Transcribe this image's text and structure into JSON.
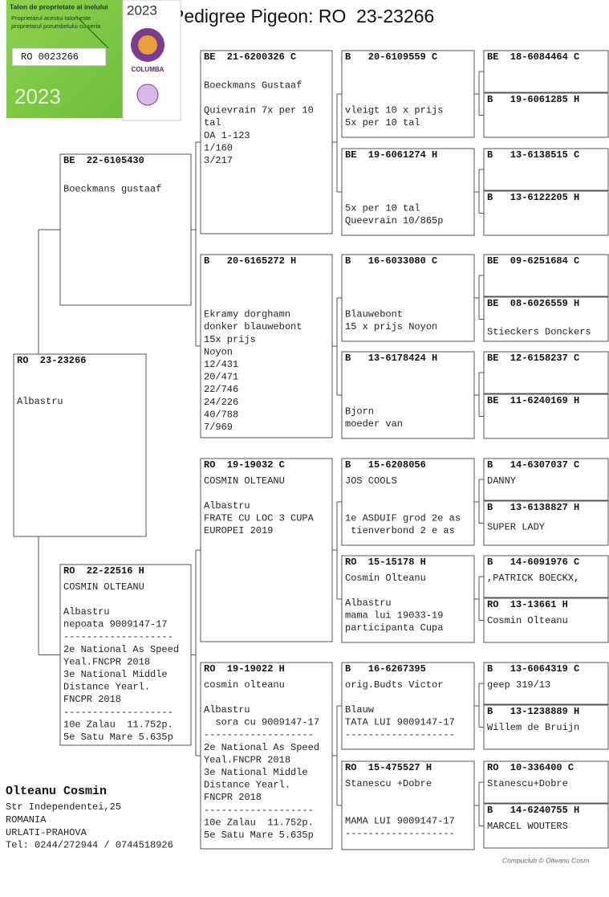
{
  "title": "Pedigree Pigeon: RO  23-23266",
  "sticker": {
    "heading": "Talon de proprietate al inelului",
    "line1": "Proprietarul acestui talon este",
    "line2": "proprietarul porumbelului cu seria",
    "ring": "RO 0023266",
    "year": "2023",
    "badge_year": "2023",
    "badge_name": "COLUMBA"
  },
  "boxes": [
    {
      "lines": [
        "RO  23-23266",
        "Albastru"
      ]
    },
    {
      "lines": [
        "BE  22-6105430",
        "Boeckmans gustaaf"
      ]
    },
    {
      "lines": [
        "RO  22-22516 H",
        "COSMIN OLTEANU",
        "Albastru",
        "nepoata 9009147-17",
        "-------------------",
        "2e National As Speed",
        "Yeal.FNCPR 2018",
        "3e National Middle",
        "Distance Yearl.",
        "FNCPR 2018",
        "-------------------",
        "10e Zalau  11.752p.",
        "5e Satu Mare 5.635p"
      ]
    },
    {
      "lines": [
        "BE  21-6200326 C",
        "Boeckmans Gustaaf",
        "Quievrain 7x per 10",
        "tal",
        "OA 1-123",
        "1/160",
        "3/217"
      ]
    },
    {
      "lines": [
        "B   20-6165272 H",
        "Ekramy dorghamn",
        "donker blauwebont",
        "15x prijs",
        "Noyon",
        "12/431",
        "20/471",
        "22/746",
        "24/226",
        "40/788",
        "7/969"
      ]
    },
    {
      "lines": [
        "RO  19-19032 C",
        "COSMIN OLTEANU",
        "Albastru",
        "FRATE CU LOC 3 CUPA",
        "EUROPEI 2019"
      ]
    },
    {
      "lines": [
        "RO  19-19022 H",
        "cosmin olteanu",
        "Albastru",
        "  sora cu 9009147-17",
        "-------------------",
        "2e National As Speed",
        "Yeal.FNCPR 2018",
        "3e National Middle",
        "Distance Yearl.",
        "FNCPR 2018",
        "-------------------",
        "10e Zalau  11.752p.",
        "5e Satu Mare 5.635p"
      ]
    },
    {
      "lines": [
        "B   20-6109559 C",
        "vleigt 10 x prijs",
        "5x per 10 tal"
      ]
    },
    {
      "lines": [
        "BE  19-6061274 H",
        "5x per 10 tal",
        "Queevrain 10/865p"
      ]
    },
    {
      "lines": [
        "B   16-6033080 C",
        "Blauwebont",
        "15 x prijs Noyon"
      ]
    },
    {
      "lines": [
        "B   13-6178424 H",
        "Bjorn",
        "moeder van"
      ]
    },
    {
      "lines": [
        "B   15-6208056",
        "JOS COOLS",
        "1e ASDUIF grod 2e as",
        " tienverbond 2 e as"
      ]
    },
    {
      "lines": [
        "RO  15-15178 H",
        "Cosmin Olteanu",
        "Albastru",
        "mama lui 19033-19",
        "participanta Cupa"
      ]
    },
    {
      "lines": [
        "B   16-6267395",
        "orig.Budts Victor",
        "Blauw",
        "TATA LUI 9009147-17",
        "-------------------"
      ]
    },
    {
      "lines": [
        "RO  15-475527 H",
        "Stanescu +Dobre",
        "MAMA LUI 9009147-17",
        "-------------------"
      ]
    },
    {
      "lines": [
        "BE  18-6084464 C"
      ]
    },
    {
      "lines": [
        "B   19-6061285 H"
      ]
    },
    {
      "lines": [
        "B   13-6138515 C"
      ]
    },
    {
      "lines": [
        "B   13-6122205 H"
      ]
    },
    {
      "lines": [
        "BE  09-6251684 C"
      ]
    },
    {
      "lines": [
        "BE  08-6026559 H",
        "Stieckers Donckers"
      ]
    },
    {
      "lines": [
        "BE  12-6158237 C"
      ]
    },
    {
      "lines": [
        "BE  11-6240169 H"
      ]
    },
    {
      "lines": [
        "B   14-6307037 C",
        "DANNY"
      ]
    },
    {
      "lines": [
        "B   13-6138827 H",
        "SUPER LADY"
      ]
    },
    {
      "lines": [
        "B   14-6091976 C",
        ",PATRICK BOECKX,"
      ]
    },
    {
      "lines": [
        "RO  13-13661 H",
        "Cosmin Olteanu"
      ]
    },
    {
      "lines": [
        "B   13-6064319 C",
        "geep 319/13"
      ]
    },
    {
      "lines": [
        "B   13-1238889 H",
        "Willem de Bruijn"
      ]
    },
    {
      "lines": [
        "RO  10-336400 C",
        "Stanescu+Dobre"
      ]
    },
    {
      "lines": [
        "B   14-6240755 H",
        "MARCEL WOUTERS"
      ]
    }
  ],
  "breeder": {
    "name": "Olteanu Cosmin",
    "lines": [
      "Str Independentei,25",
      "ROMANIA",
      "URLATI-PRAHOVA",
      "Tel: 0244/272944 / 0744518926"
    ]
  },
  "footer": "Compuclub © Olteanu Cosm"
}
